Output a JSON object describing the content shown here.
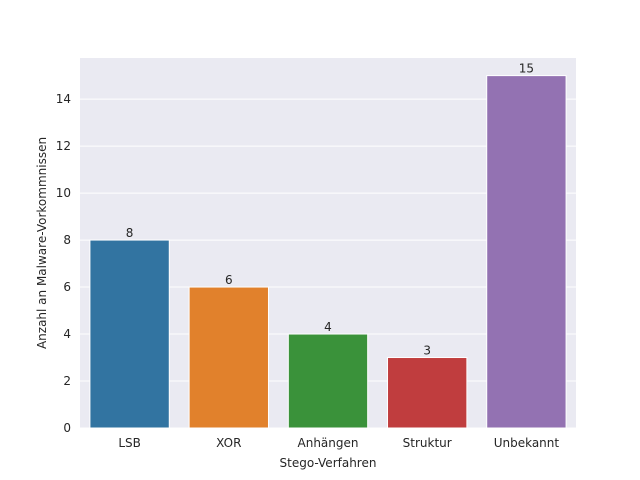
{
  "chart_data": {
    "type": "bar",
    "title": "",
    "xlabel": "Stego-Verfahren",
    "ylabel": "Anzahl an Malware-Vorkommnissen",
    "categories": [
      "LSB",
      "XOR",
      "Anhängen",
      "Struktur",
      "Unbekannt"
    ],
    "values": [
      8,
      6,
      4,
      3,
      15
    ],
    "data_labels": [
      "8",
      "6",
      "4",
      "3",
      "15"
    ],
    "colors": [
      "#3274a1",
      "#e1812c",
      "#3a923a",
      "#c03d3e",
      "#9372b2"
    ],
    "yticks": [
      0,
      2,
      4,
      6,
      8,
      10,
      12,
      14
    ],
    "ylim": [
      0,
      15.75
    ],
    "grid": true,
    "background": "#eaeaf2"
  }
}
